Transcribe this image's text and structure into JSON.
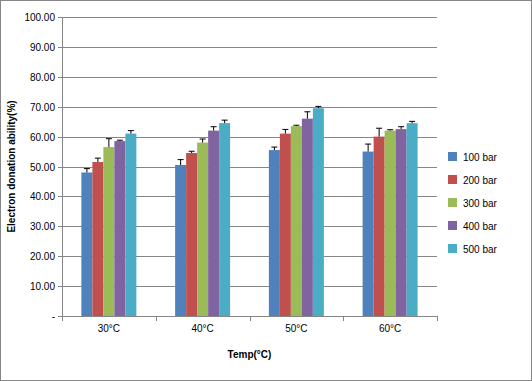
{
  "chart_data": {
    "type": "bar",
    "x_label": "Temp(°C)",
    "y_label": "Electron donation ability(%)",
    "categories": [
      "30°C",
      "40°C",
      "50°C",
      "60°C"
    ],
    "series": [
      {
        "name": "100 bar",
        "color": "#4f81bd",
        "values": [
          48,
          50.5,
          55.5,
          55
        ],
        "errors": [
          1.3,
          1.8,
          1,
          2.5
        ]
      },
      {
        "name": "200 bar",
        "color": "#c0504d",
        "values": [
          51.5,
          54.5,
          61,
          60
        ],
        "errors": [
          1.3,
          0.6,
          1.4,
          2.8
        ]
      },
      {
        "name": "300 bar",
        "color": "#9bbb59",
        "values": [
          56.5,
          58,
          63.5,
          62
        ],
        "errors": [
          2.8,
          1.2,
          0.3,
          0.3
        ]
      },
      {
        "name": "400 bar",
        "color": "#8064a2",
        "values": [
          58.5,
          62,
          66,
          62.5
        ],
        "errors": [
          0.3,
          1.3,
          2.3,
          0.8
        ]
      },
      {
        "name": "500 bar",
        "color": "#4bacc6",
        "values": [
          61,
          64.5,
          69.5,
          64.5
        ],
        "errors": [
          1,
          1,
          0.6,
          0.6
        ]
      }
    ],
    "ylim": [
      0,
      100
    ],
    "yticks": [
      {
        "value": 0,
        "label": "-"
      },
      {
        "value": 10,
        "label": "10.00"
      },
      {
        "value": 20,
        "label": "20.00"
      },
      {
        "value": 30,
        "label": "30.00"
      },
      {
        "value": 40,
        "label": "40.00"
      },
      {
        "value": 50,
        "label": "50.00"
      },
      {
        "value": 60,
        "label": "60.00"
      },
      {
        "value": 70,
        "label": "70.00"
      },
      {
        "value": 80,
        "label": "80.00"
      },
      {
        "value": 90,
        "label": "90.00"
      },
      {
        "value": 100,
        "label": "100.00"
      }
    ],
    "grid": true,
    "legend": "right"
  }
}
